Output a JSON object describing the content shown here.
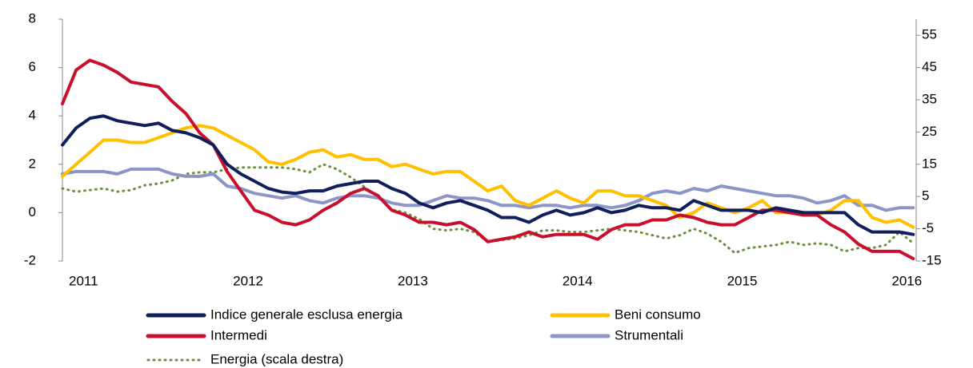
{
  "chart_data": {
    "type": "line",
    "categories": [
      null,
      null,
      "2011",
      null,
      null,
      null,
      null,
      null,
      null,
      null,
      null,
      null,
      null,
      null,
      "2012",
      null,
      null,
      null,
      null,
      null,
      null,
      null,
      null,
      null,
      null,
      null,
      "2013",
      null,
      null,
      null,
      null,
      null,
      null,
      null,
      null,
      null,
      null,
      null,
      "2014",
      null,
      null,
      null,
      null,
      null,
      null,
      null,
      null,
      null,
      null,
      null,
      "2015",
      null,
      null,
      null,
      null,
      null,
      null,
      null,
      null,
      null,
      null,
      null,
      "2016"
    ],
    "ylim": [
      -2,
      8
    ],
    "yticks": [
      -2,
      0,
      2,
      4,
      6,
      8
    ],
    "y2lim": [
      -15,
      60
    ],
    "y2ticks": [
      -15,
      -5,
      5,
      15,
      25,
      35,
      45,
      55
    ],
    "series": [
      {
        "name": "Indice generale esclusa energia",
        "color": "#0f1f5c",
        "values": [
          2.8,
          3.5,
          3.9,
          4.0,
          3.8,
          3.7,
          3.6,
          3.7,
          3.4,
          3.3,
          3.1,
          2.8,
          2.0,
          1.6,
          1.3,
          1.0,
          0.85,
          0.8,
          0.9,
          0.9,
          1.1,
          1.2,
          1.3,
          1.3,
          1.0,
          0.8,
          0.4,
          0.2,
          0.4,
          0.5,
          0.3,
          0.1,
          -0.2,
          -0.2,
          -0.4,
          -0.1,
          0.1,
          -0.1,
          0.0,
          0.2,
          0.0,
          0.1,
          0.3,
          0.2,
          0.2,
          0.1,
          0.5,
          0.3,
          0.1,
          0.1,
          0.1,
          0.0,
          0.2,
          0.1,
          0.0,
          0.0,
          0.0,
          0.0,
          -0.5,
          -0.8,
          -0.8,
          -0.8,
          -0.9
        ]
      },
      {
        "name": "Beni consumo",
        "color": "#ffc000",
        "values": [
          1.5,
          2.0,
          2.5,
          3.0,
          3.0,
          2.9,
          2.9,
          3.1,
          3.3,
          3.5,
          3.6,
          3.5,
          3.2,
          2.9,
          2.6,
          2.1,
          2.0,
          2.2,
          2.5,
          2.6,
          2.3,
          2.4,
          2.2,
          2.2,
          1.9,
          2.0,
          1.8,
          1.6,
          1.7,
          1.7,
          1.3,
          0.9,
          1.1,
          0.5,
          0.3,
          0.6,
          0.9,
          0.6,
          0.4,
          0.9,
          0.9,
          0.7,
          0.7,
          0.5,
          0.3,
          -0.2,
          0.0,
          0.4,
          0.2,
          0.0,
          0.2,
          0.5,
          0.0,
          0.0,
          0.0,
          -0.1,
          0.1,
          0.5,
          0.5,
          -0.2,
          -0.4,
          -0.3,
          -0.6
        ]
      },
      {
        "name": "Intermedi",
        "color": "#c8102e",
        "values": [
          4.5,
          5.9,
          6.3,
          6.1,
          5.8,
          5.4,
          5.3,
          5.2,
          4.6,
          4.1,
          3.3,
          2.8,
          1.7,
          0.9,
          0.1,
          -0.1,
          -0.4,
          -0.5,
          -0.3,
          0.1,
          0.4,
          0.8,
          1.0,
          0.7,
          0.1,
          -0.1,
          -0.4,
          -0.4,
          -0.5,
          -0.4,
          -0.7,
          -1.2,
          -1.1,
          -1.0,
          -0.8,
          -1.0,
          -0.9,
          -0.9,
          -0.9,
          -1.1,
          -0.7,
          -0.5,
          -0.5,
          -0.3,
          -0.3,
          -0.1,
          -0.2,
          -0.4,
          -0.5,
          -0.5,
          -0.2,
          0.1,
          0.1,
          0.0,
          -0.1,
          -0.1,
          -0.5,
          -0.8,
          -1.3,
          -1.6,
          -1.6,
          -1.6,
          -1.9
        ]
      },
      {
        "name": "Strumentali",
        "color": "#8c96c6",
        "values": [
          1.6,
          1.7,
          1.7,
          1.7,
          1.6,
          1.8,
          1.8,
          1.8,
          1.6,
          1.5,
          1.5,
          1.6,
          1.1,
          1.0,
          0.8,
          0.7,
          0.6,
          0.7,
          0.5,
          0.4,
          0.6,
          0.7,
          0.7,
          0.6,
          0.4,
          0.3,
          0.3,
          0.5,
          0.7,
          0.6,
          0.6,
          0.5,
          0.3,
          0.3,
          0.2,
          0.3,
          0.3,
          0.2,
          0.3,
          0.3,
          0.2,
          0.3,
          0.5,
          0.8,
          0.9,
          0.8,
          1.0,
          0.9,
          1.1,
          1.0,
          0.9,
          0.8,
          0.7,
          0.7,
          0.6,
          0.4,
          0.5,
          0.7,
          0.3,
          0.3,
          0.1,
          0.2,
          0.2
        ]
      },
      {
        "name": "Energia (scala destra)",
        "color": "#6b8e3a",
        "dashed": true,
        "axis": "y2",
        "values": [
          7.5,
          6.5,
          7,
          7.5,
          6.5,
          7,
          8.5,
          9,
          10,
          12,
          12.5,
          12.5,
          13.5,
          14,
          14,
          14,
          14,
          13.5,
          12.5,
          15,
          13.5,
          11,
          8,
          5,
          1,
          0,
          -2,
          -5,
          -5.5,
          -5,
          -6,
          -9,
          -8.5,
          -8,
          -7,
          -5.5,
          -5.5,
          -6,
          -6,
          -5.5,
          -5,
          -5.5,
          -6,
          -7,
          -8,
          -7,
          -5,
          -6.5,
          -9,
          -12.5,
          -11,
          -10.5,
          -10,
          -9,
          -10,
          -9.5,
          -10,
          -12,
          -11,
          -11,
          -10,
          -6,
          -9.5
        ]
      }
    ]
  }
}
